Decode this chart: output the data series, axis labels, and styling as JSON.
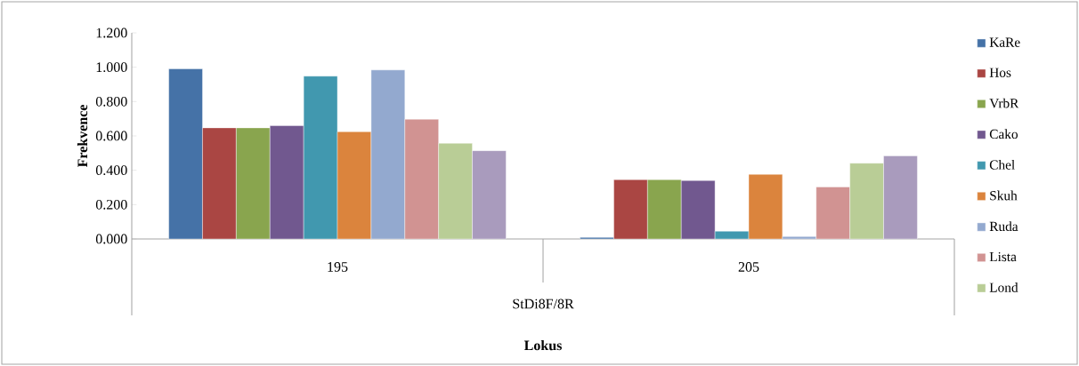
{
  "chart_data": {
    "type": "bar",
    "xlabel": "Lokus",
    "ylabel": "Frekvence",
    "categories": [
      "195",
      "205"
    ],
    "annotations": [
      "StDi8F/8R"
    ],
    "series": [
      {
        "name": "KaRe",
        "color": "#4572a7",
        "values": [
          0.991,
          0.009
        ]
      },
      {
        "name": "Hos",
        "color": "#aa4643",
        "values": [
          0.647,
          0.345
        ]
      },
      {
        "name": "VrbR",
        "color": "#89a54e",
        "values": [
          0.647,
          0.345
        ]
      },
      {
        "name": "Cako",
        "color": "#71588f",
        "values": [
          0.66,
          0.34
        ]
      },
      {
        "name": "Chel",
        "color": "#4198af",
        "values": [
          0.948,
          0.045
        ]
      },
      {
        "name": "Skuh",
        "color": "#db843d",
        "values": [
          0.624,
          0.376
        ]
      },
      {
        "name": "Ruda",
        "color": "#93a9cf",
        "values": [
          0.984,
          0.014
        ]
      },
      {
        "name": "Lista",
        "color": "#d19392",
        "values": [
          0.697,
          0.303
        ]
      },
      {
        "name": "Lond",
        "color": "#b9cd96",
        "values": [
          0.557,
          0.441
        ]
      },
      {
        "color": "#a99bbd",
        "values": [
          0.514,
          0.484
        ]
      }
    ],
    "ylim": [
      0,
      1.2
    ],
    "yticks": [
      {
        "value": 0,
        "label": "0.000"
      },
      {
        "value": 0.2,
        "label": "0.200"
      },
      {
        "value": 0.4,
        "label": "0.400"
      },
      {
        "value": 0.6,
        "label": "0.600"
      },
      {
        "value": 0.8,
        "label": "0.800"
      },
      {
        "value": 1.0,
        "label": "1.000"
      },
      {
        "value": 1.2,
        "label": "1.200"
      }
    ],
    "legend": "right"
  }
}
